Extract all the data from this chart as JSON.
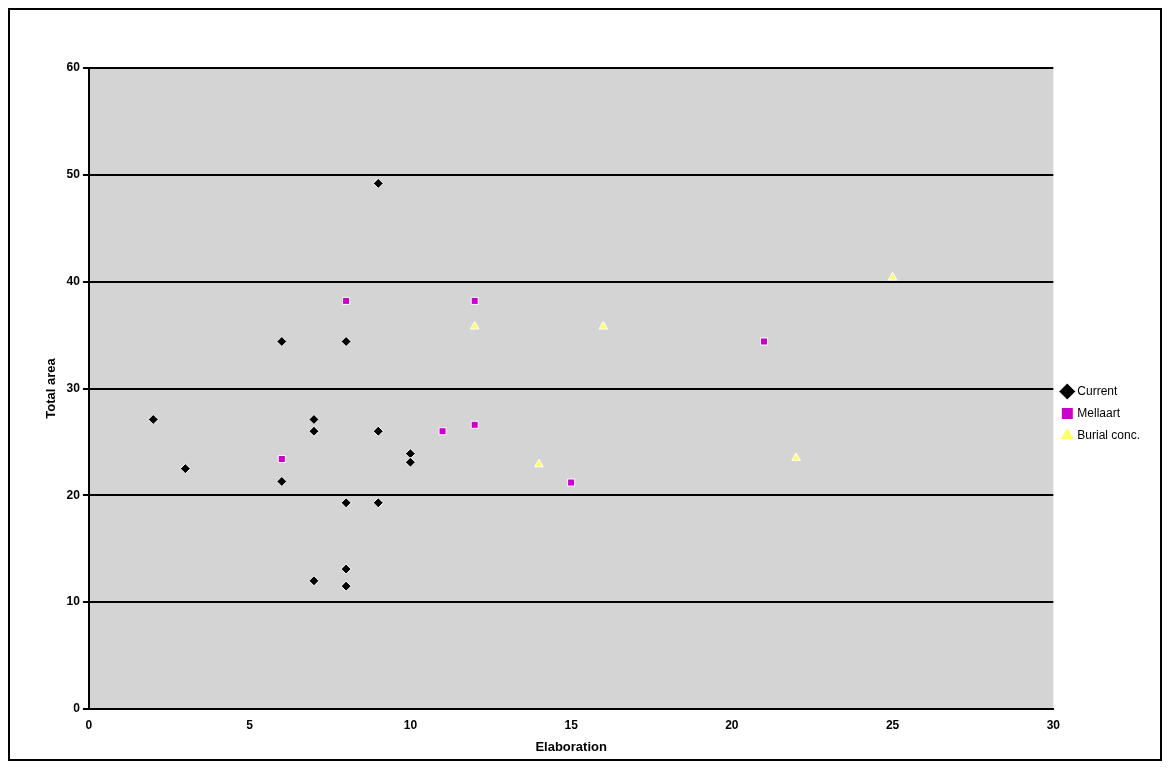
{
  "chart_data": {
    "type": "scatter",
    "xlabel": "Elaboration",
    "ylabel": "Total area",
    "xlim": [
      0,
      30
    ],
    "xticks": [
      0,
      5,
      10,
      15,
      20,
      25,
      30
    ],
    "ylim": [
      0,
      60
    ],
    "yticks": [
      0,
      10,
      20,
      30,
      40,
      50,
      60
    ],
    "grid": "y",
    "legend": "right",
    "series": [
      {
        "name": "Current",
        "color": "#000000",
        "marker": "diamond",
        "x": [
          9,
          6,
          8,
          2,
          7,
          7,
          9,
          10,
          10,
          3,
          6,
          8,
          9,
          8,
          7,
          8
        ],
        "values": [
          49.2,
          34.4,
          34.4,
          27.1,
          27.1,
          26,
          26,
          23.9,
          23.1,
          22.5,
          21.3,
          19.3,
          19.3,
          13.1,
          12,
          11.5
        ]
      },
      {
        "name": "Mellaart",
        "color": "#cc00cc",
        "marker": "square",
        "x": [
          8,
          12,
          21,
          6,
          11,
          12,
          15
        ],
        "values": [
          38.2,
          38.2,
          34.4,
          23.4,
          26,
          26.6,
          21.2
        ]
      },
      {
        "name": "Burial conc.",
        "color": "#ffff66",
        "marker": "triangle",
        "x": [
          25,
          12,
          16,
          14,
          22
        ],
        "values": [
          40.4,
          35.8,
          35.8,
          22.9,
          23.5
        ]
      }
    ]
  }
}
